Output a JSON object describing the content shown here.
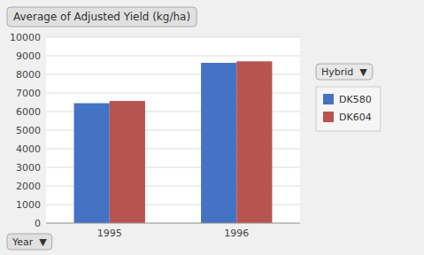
{
  "chart_data": {
    "type": "bar",
    "title": "Average of Adjusted Yield (kg/ha)",
    "categories": [
      "1995",
      "1996"
    ],
    "series": [
      {
        "name": "DK580",
        "color": "#4472C4",
        "values": [
          6450,
          8620
        ]
      },
      {
        "name": "DK604",
        "color": "#B85450",
        "values": [
          6570,
          8700
        ]
      }
    ],
    "x_label": "Year  ▼",
    "legend_title": "Hybrid  ▼",
    "ylim": [
      0,
      10000
    ],
    "yticks": [
      0,
      1000,
      2000,
      3000,
      4000,
      5000,
      6000,
      7000,
      8000,
      9000,
      10000
    ],
    "grid": true,
    "legend": "right"
  }
}
